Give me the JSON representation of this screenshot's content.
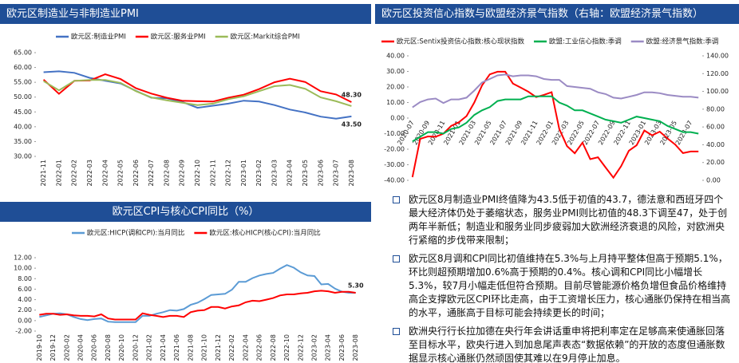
{
  "chart_data": [
    {
      "type": "line",
      "title": "欧元区制造业与非制造业PMI",
      "categories": [
        "2021-11",
        "2022-01",
        "2022-02",
        "2022-03",
        "2022-04",
        "2022-05",
        "2022-06",
        "2022-07",
        "2022-08",
        "2022-09",
        "2022-10",
        "2022-11",
        "2022-12",
        "2023-01",
        "2023-02",
        "2023-03",
        "2023-04",
        "2023-05",
        "2023-06",
        "2023-07",
        "2023-08"
      ],
      "series": [
        {
          "name": "欧元区:制造业PMI",
          "color": "#4472c4",
          "values": [
            58.4,
            58.7,
            58.2,
            56.5,
            55.5,
            54.6,
            52.1,
            49.8,
            49.6,
            48.4,
            46.4,
            47.1,
            47.8,
            48.8,
            48.5,
            47.3,
            45.8,
            44.8,
            43.4,
            42.7,
            43.5
          ],
          "value_labels": [
            null,
            null,
            null,
            null,
            null,
            null,
            null,
            null,
            null,
            null,
            null,
            null,
            null,
            null,
            null,
            null,
            null,
            null,
            null,
            null,
            "43.50"
          ]
        },
        {
          "name": "欧元区:服务业PMI",
          "color": "#ff0000",
          "values": [
            55.9,
            51.1,
            55.5,
            55.6,
            57.7,
            56.1,
            53.0,
            51.2,
            49.8,
            48.8,
            48.6,
            48.5,
            49.8,
            50.8,
            52.7,
            55.0,
            56.2,
            55.1,
            52.0,
            50.9,
            48.3
          ],
          "value_labels": [
            null,
            null,
            null,
            null,
            null,
            null,
            null,
            null,
            null,
            null,
            null,
            null,
            null,
            null,
            null,
            null,
            null,
            null,
            null,
            null,
            "48.30"
          ]
        },
        {
          "name": "欧元区:Markit综合PMI",
          "color": "#9bbb59",
          "values": [
            55.4,
            52.3,
            55.5,
            55.8,
            55.8,
            54.8,
            52.0,
            49.9,
            48.9,
            48.1,
            47.3,
            47.8,
            49.3,
            50.3,
            52.0,
            53.7,
            54.1,
            52.8,
            49.9,
            48.6,
            47.0
          ]
        }
      ],
      "ylim": [
        30,
        65
      ],
      "yticks": [
        {
          "value": 30,
          "label": "30.00"
        },
        {
          "value": 35,
          "label": "35.00"
        },
        {
          "value": 40,
          "label": "40.00"
        },
        {
          "value": 45,
          "label": "45.00"
        },
        {
          "value": 50,
          "label": "50.00"
        },
        {
          "value": 55,
          "label": "55.00"
        },
        {
          "value": 60,
          "label": "60.00"
        },
        {
          "value": 65,
          "label": "65.00"
        }
      ],
      "grid": false
    },
    {
      "type": "line",
      "title": "欧元区CPI与核心CPI同比（%）",
      "categories": [
        "2019-10",
        null,
        "2019-12",
        null,
        "2020-02",
        null,
        "2020-04",
        null,
        "2020-06",
        null,
        "2020-08",
        null,
        "2020-10",
        null,
        "2020-12",
        null,
        "2021-02",
        null,
        "2021-04",
        null,
        "2021-06",
        null,
        "2021-08",
        null,
        "2021-10",
        null,
        "2021-12",
        null,
        "2022-02",
        null,
        "2022-04",
        null,
        "2022-06",
        null,
        "2022-08",
        null,
        "2022-10",
        null,
        "2022-12",
        null,
        "2023-02",
        null,
        "2023-04",
        null,
        "2023-06",
        null,
        "2023-08"
      ],
      "series": [
        {
          "name": "欧元区:HICP(调和CPI):当月同比",
          "color": "#5b9bd5",
          "values": [
            0.7,
            1.0,
            1.3,
            1.4,
            1.2,
            0.7,
            0.3,
            0.1,
            0.3,
            0.4,
            -0.2,
            -0.3,
            -0.3,
            -0.3,
            -0.3,
            0.9,
            0.9,
            1.3,
            1.6,
            2.0,
            1.9,
            2.2,
            3.0,
            3.4,
            4.1,
            4.9,
            5.0,
            5.1,
            5.9,
            7.4,
            7.4,
            8.1,
            8.6,
            8.9,
            9.1,
            9.9,
            10.6,
            10.1,
            9.2,
            8.6,
            8.5,
            6.9,
            7.0,
            6.1,
            5.5,
            5.3,
            5.3
          ]
        },
        {
          "name": "欧元区:核心HICP(核心CPI):当月同比",
          "color": "#ff0000",
          "values": [
            1.1,
            1.3,
            1.3,
            1.1,
            1.2,
            1.0,
            0.9,
            0.9,
            0.8,
            1.2,
            0.4,
            0.2,
            0.2,
            0.2,
            0.2,
            1.4,
            1.1,
            0.9,
            0.7,
            0.9,
            0.9,
            0.7,
            1.6,
            1.9,
            2.0,
            2.6,
            2.6,
            2.3,
            2.7,
            2.9,
            3.5,
            3.8,
            3.7,
            4.0,
            4.3,
            4.8,
            5.0,
            5.0,
            5.2,
            5.3,
            5.6,
            5.7,
            5.6,
            5.3,
            5.5,
            5.5,
            5.3
          ],
          "value_labels": [
            null,
            null,
            null,
            null,
            null,
            null,
            null,
            null,
            null,
            null,
            null,
            null,
            null,
            null,
            null,
            null,
            null,
            null,
            null,
            null,
            null,
            null,
            null,
            null,
            null,
            null,
            null,
            null,
            null,
            null,
            null,
            null,
            null,
            null,
            null,
            null,
            null,
            null,
            null,
            null,
            null,
            null,
            null,
            null,
            null,
            null,
            "5.30"
          ]
        }
      ],
      "ylim": [
        -2,
        12
      ],
      "yticks": [
        {
          "value": -2,
          "label": "-2.00"
        },
        {
          "value": 0,
          "label": "0.00"
        },
        {
          "value": 2,
          "label": "2.00"
        },
        {
          "value": 4,
          "label": "4.00"
        },
        {
          "value": 6,
          "label": "6.00"
        },
        {
          "value": 8,
          "label": "8.00"
        },
        {
          "value": 10,
          "label": "10.00"
        },
        {
          "value": 12,
          "label": "12.00"
        }
      ],
      "grid": false
    },
    {
      "type": "line",
      "title": "欧元区投资信心指数与欧盟经济景气指数（右轴：欧盟经济景气指数）",
      "categories": [
        "2020-07",
        null,
        "2020-09",
        null,
        "2020-11",
        null,
        "2021-01",
        null,
        "2021-03",
        null,
        "2021-05",
        null,
        "2021-07",
        null,
        "2021-09",
        null,
        "2021-11",
        null,
        "2022-01",
        null,
        "2022-03",
        null,
        "2022-05",
        null,
        "2022-07",
        null,
        "2022-09",
        null,
        "2022-11",
        null,
        "2023-01",
        null,
        "2023-03",
        null,
        "2023-05",
        null,
        "2023-07",
        null
      ],
      "series": [
        {
          "name": "欧元区:Sentix投资信心指数:核心现状指数",
          "color": "#ff0000",
          "values": [
            -38.0,
            -13.4,
            -11.8,
            -12.0,
            -10.0,
            -5.0,
            -2.7,
            1.3,
            10.0,
            21.0,
            28.1,
            29.8,
            29.8,
            22.2,
            19.6,
            16.9,
            13.5,
            14.9,
            16.6,
            -7.0,
            -18.0,
            -22.6,
            -15.8,
            -26.4,
            -25.2,
            -31.8,
            -38.3,
            -30.9,
            -21.0,
            -17.5,
            -8.0,
            -11.1,
            -8.7,
            -13.1,
            -17.0,
            -22.5,
            -21.5,
            -21.5
          ]
        },
        {
          "name": "欧盟:工业信心指数:季调",
          "color": "#00b050",
          "values": [
            -15,
            -12,
            -9,
            -9,
            -10,
            -7,
            -6,
            -3,
            2,
            5,
            7,
            11,
            12,
            12,
            12,
            14,
            14,
            14,
            14,
            10,
            8,
            5,
            5,
            3,
            1,
            -1,
            -2,
            -3,
            -1,
            1,
            0,
            -1,
            -2,
            -5,
            -7,
            -9,
            -9,
            -10
          ]
        },
        {
          "name": "欧盟:经济景气指数:季调",
          "color": "#9b8bc4",
          "axis": "y2",
          "values": [
            82,
            88,
            91,
            92,
            87,
            91,
            91,
            93,
            101,
            110,
            114,
            118,
            119,
            117,
            118,
            118,
            117,
            114,
            113,
            113,
            106,
            105,
            104,
            103,
            99,
            97,
            93,
            92,
            94,
            96,
            99,
            99,
            98,
            96,
            95,
            94,
            94,
            93
          ]
        }
      ],
      "ylim": [
        -40,
        40
      ],
      "yticks": [
        {
          "value": -40,
          "label": "-40.00"
        },
        {
          "value": -30,
          "label": "-30.00"
        },
        {
          "value": -20,
          "label": "-20.00"
        },
        {
          "value": -10,
          "label": "-10.00"
        },
        {
          "value": 0,
          "label": "0.00"
        },
        {
          "value": 10,
          "label": "10.00"
        },
        {
          "value": 20,
          "label": "20.00"
        },
        {
          "value": 30,
          "label": "30.00"
        },
        {
          "value": 40,
          "label": "40.00"
        }
      ],
      "y2lim": [
        0,
        140
      ],
      "y2ticks": [
        {
          "value": 0,
          "label": "0.00"
        },
        {
          "value": 20,
          "label": "20.00"
        },
        {
          "value": 40,
          "label": "40.00"
        },
        {
          "value": 60,
          "label": "60.00"
        },
        {
          "value": 80,
          "label": "80.00"
        },
        {
          "value": 100,
          "label": "100.00"
        },
        {
          "value": 120,
          "label": "120.00"
        },
        {
          "value": 140,
          "label": "140.00"
        }
      ],
      "grid": false
    }
  ],
  "bullets": [
    "欧元区8月制造业PMI终值降为43.5低于初值的43.7，德法意和西班牙四个最大经济体仍处于萎缩状态，服务业PMI则比初值的48.3下调至47，处于创两年半新低；制造业和服务业同步疲弱加大欧洲经济衰退的风险，对欧洲央行紧缩的步伐带来限制；",
    "欧元区8月调和CPI同比初值维持在5.3%与上月持平整体但高于预期5.1%，环比则超预期增加0.6%高于预期的0.4%。核心调和CPI同比小幅增长5.3%，较7月小幅走低但符合预期。目前尽管能源价格负增但食品价格维持高企支撑欧元区CPI环比走高，由于工资增长压力，核心通胀仍保持在相当高的水平，通胀高于目标可能会持续更长的时间；",
    "欧洲央行行长拉加德在央行年会讲话重申将把利率定在足够高来使通胀回落至目标水平，欧央行进入到加息尾声表态“数据依赖”的开放的态度但通胀数据显示核心通胀仍然顽固使其难以在9月停止加息。"
  ]
}
